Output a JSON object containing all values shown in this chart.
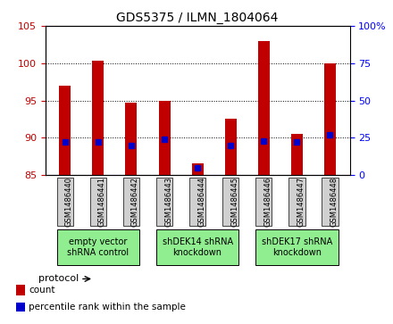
{
  "title": "GDS5375 / ILMN_1804064",
  "samples": [
    "GSM1486440",
    "GSM1486441",
    "GSM1486442",
    "GSM1486443",
    "GSM1486444",
    "GSM1486445",
    "GSM1486446",
    "GSM1486447",
    "GSM1486448"
  ],
  "count_values": [
    97.0,
    100.3,
    94.7,
    95.0,
    86.5,
    92.5,
    103.0,
    90.5,
    100.0
  ],
  "percentile_values": [
    22,
    22,
    20,
    24,
    5,
    20,
    23,
    22,
    27
  ],
  "ylim_left": [
    85,
    105
  ],
  "ylim_right": [
    0,
    100
  ],
  "yticks_left": [
    85,
    90,
    95,
    100,
    105
  ],
  "yticks_right": [
    0,
    25,
    50,
    75,
    100
  ],
  "ytick_labels_right": [
    "0",
    "25",
    "50",
    "75",
    "100%"
  ],
  "bar_bottom": 85,
  "count_color": "#c00000",
  "percentile_color": "#0000cc",
  "bg_color": "#ffffff",
  "sample_box_color": "#d0d0d0",
  "protocol_box_color": "#90ee90",
  "legend_count_label": "count",
  "legend_percentile_label": "percentile rank within the sample",
  "protocol_label": "protocol",
  "title_fontsize": 10,
  "tick_fontsize": 8,
  "sample_fontsize": 6,
  "protocol_fontsize": 7,
  "legend_fontsize": 7.5,
  "bar_width": 0.35,
  "protocol_groups": [
    {
      "label": "empty vector\nshRNA control",
      "start": 0,
      "end": 3
    },
    {
      "label": "shDEK14 shRNA\nknockdown",
      "start": 3,
      "end": 6
    },
    {
      "label": "shDEK17 shRNA\nknockdown",
      "start": 6,
      "end": 9
    }
  ]
}
